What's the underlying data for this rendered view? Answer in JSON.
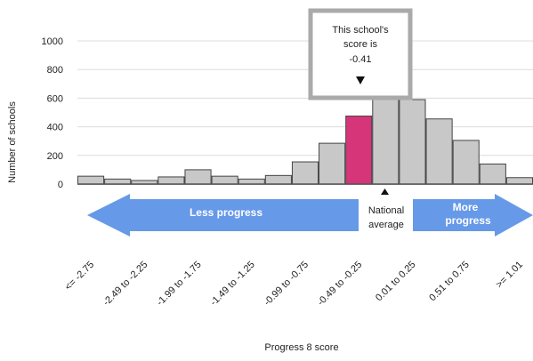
{
  "chart_data": {
    "type": "bar",
    "title": "",
    "xlabel": "Progress 8 score",
    "ylabel": "Number of schools",
    "ylim": [
      0,
      1000
    ],
    "yticks": [
      0,
      200,
      400,
      600,
      800,
      1000
    ],
    "grid": true,
    "categories": [
      "<= -2.75",
      "",
      "-2.49 to -2.25",
      "",
      "-1.99 to -1.75",
      "",
      "-1.49 to -1.25",
      "",
      "-0.99 to -0.75",
      "",
      "-0.49 to -0.25",
      "",
      "0.01 to 0.25",
      "",
      "0.51 to 0.75",
      "",
      ">= 1.01"
    ],
    "values": [
      55,
      35,
      25,
      50,
      100,
      55,
      35,
      60,
      155,
      285,
      475,
      625,
      590,
      455,
      305,
      140,
      45
    ],
    "highlight_index": 10,
    "colors": {
      "bar": "#c8c8c8",
      "highlight": "#d6357a",
      "arrow": "#6699e8",
      "callout_border": "#aaaaaa",
      "grid": "#dcdcdc"
    },
    "annotations": {
      "callout": [
        "This school's",
        "score is",
        "-0.41"
      ],
      "less_progress": "Less progress",
      "more_progress": [
        "More",
        "progress"
      ],
      "national_average": [
        "National",
        "average"
      ]
    }
  }
}
